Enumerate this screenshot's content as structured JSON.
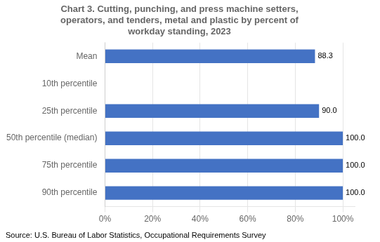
{
  "chart_data": {
    "type": "bar",
    "orientation": "horizontal",
    "title": "Chart 3. Cutting, punching, and press machine setters,\noperators, and tenders, metal and plastic by percent of\nworkday standing, 2023",
    "categories": [
      "Mean",
      "10th percentile",
      "25th percentile",
      "50th percentile (median)",
      "75th percentile",
      "90th percentile"
    ],
    "values": [
      88.3,
      0,
      90.0,
      100.0,
      100.0,
      100.0
    ],
    "value_labels": [
      "88.3",
      null,
      "90.0",
      "100.0",
      "100.0",
      "100.0"
    ],
    "data_labels": true,
    "color": "#4472C4",
    "xlim": [
      0,
      105
    ],
    "xticks": [
      {
        "value": 0,
        "label": "0%"
      },
      {
        "value": 20,
        "label": "20%"
      },
      {
        "value": 40,
        "label": "40%"
      },
      {
        "value": 60,
        "label": "60%"
      },
      {
        "value": 80,
        "label": "80%"
      },
      {
        "value": 100,
        "label": "100%"
      }
    ],
    "grid": true,
    "source": "Source: U.S. Bureau of Labor Statistics, Occupational Requirements Survey"
  }
}
